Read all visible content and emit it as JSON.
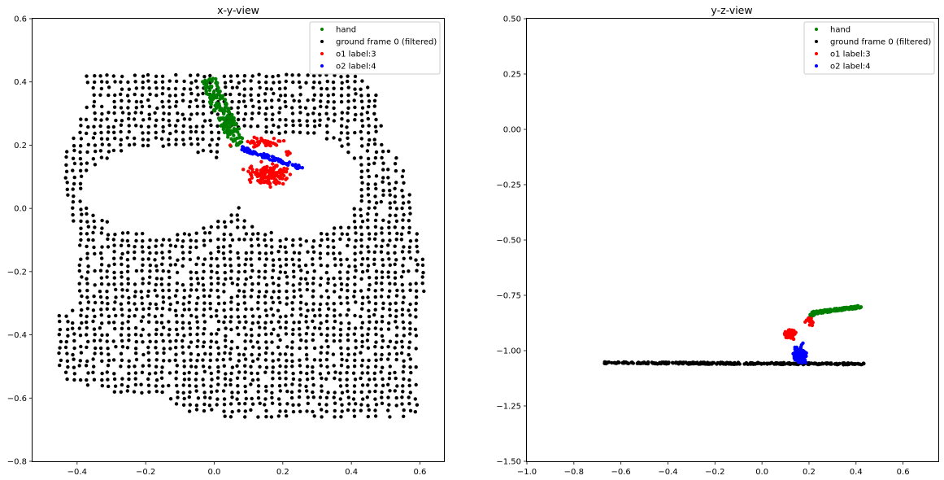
{
  "colors": {
    "hand": "#008000",
    "ground": "#000000",
    "o1": "#ff0000",
    "o2": "#0000ff",
    "background": "#ffffff"
  },
  "legend_labels": {
    "hand": "hand",
    "ground": "ground frame 0 (filtered)",
    "o1": "o1 label:3",
    "o2": "o2 label:4"
  },
  "chart_data": [
    {
      "type": "scatter",
      "title": "x-y-view",
      "xlabel": "",
      "ylabel": "",
      "xlim": [
        -0.53,
        0.67
      ],
      "ylim": [
        -0.8,
        0.6
      ],
      "xticks": [
        -0.4,
        -0.2,
        0.0,
        0.2,
        0.4,
        0.6
      ],
      "xtick_labels": [
        "−0.4",
        "−0.2",
        "0.0",
        "0.2",
        "0.4",
        "0.6"
      ],
      "yticks": [
        -0.8,
        -0.6,
        -0.4,
        -0.2,
        0.0,
        0.2,
        0.4,
        0.6
      ],
      "ytick_labels": [
        "−0.8",
        "−0.6",
        "−0.4",
        "−0.2",
        "0.0",
        "0.2",
        "0.4",
        "0.6"
      ],
      "grid": false,
      "legend_position": "top-right",
      "series": [
        {
          "name": "hand",
          "color_key": "hand",
          "description": "narrow diagonal band of points from (-0.02, 0.41) to (0.07, 0.20)",
          "segment": {
            "from": [
              -0.02,
              0.41
            ],
            "to": [
              0.07,
              0.2
            ],
            "width": 0.045,
            "count": 190
          }
        },
        {
          "name": "ground frame 0 (filtered)",
          "color_key": "ground",
          "grid_spacing": 0.02,
          "outline": [
            [
              -0.38,
              0.43
            ],
            [
              0.42,
              0.43
            ],
            [
              0.48,
              0.36
            ],
            [
              0.49,
              0.22
            ],
            [
              0.55,
              0.14
            ],
            [
              0.58,
              0.0
            ],
            [
              0.6,
              -0.1
            ],
            [
              0.62,
              -0.25
            ],
            [
              0.59,
              -0.3
            ],
            [
              0.59,
              -0.55
            ],
            [
              0.6,
              -0.65
            ],
            [
              0.55,
              -0.66
            ],
            [
              0.45,
              -0.66
            ],
            [
              0.3,
              -0.66
            ],
            [
              0.1,
              -0.66
            ],
            [
              -0.05,
              -0.66
            ],
            [
              -0.15,
              -0.6
            ],
            [
              -0.3,
              -0.58
            ],
            [
              -0.45,
              -0.55
            ],
            [
              -0.47,
              -0.35
            ],
            [
              -0.4,
              -0.3
            ],
            [
              -0.4,
              -0.1
            ],
            [
              -0.42,
              0.0
            ],
            [
              -0.44,
              0.1
            ],
            [
              -0.45,
              0.18
            ],
            [
              -0.41,
              0.24
            ],
            [
              -0.36,
              0.35
            ]
          ],
          "holes": [
            {
              "center": [
                -0.15,
                0.055
              ],
              "radii": [
                0.23,
                0.135
              ]
            },
            {
              "center": [
                0.24,
                0.075
              ],
              "radii": [
                0.185,
                0.165
              ]
            },
            {
              "center": [
                0.1,
                0.18
              ],
              "radii": [
                0.09,
                0.07
              ]
            }
          ]
        },
        {
          "name": "o1 label:3",
          "color_key": "o1",
          "clusters": [
            {
              "center": [
                0.16,
                0.11
              ],
              "spread": [
                0.06,
                0.03
              ],
              "count": 140
            },
            {
              "center": [
                0.14,
                0.21
              ],
              "spread": [
                0.055,
                0.012
              ],
              "count": 45
            },
            {
              "center": [
                0.215,
                0.175
              ],
              "spread": [
                0.008,
                0.01
              ],
              "count": 6
            }
          ]
        },
        {
          "name": "o2 label:4",
          "color_key": "o2",
          "segment": {
            "from": [
              0.08,
              0.19
            ],
            "to": [
              0.26,
              0.125
            ],
            "width": 0.012,
            "count": 90
          }
        }
      ]
    },
    {
      "type": "scatter",
      "title": "y-z-view",
      "xlabel": "",
      "ylabel": "",
      "xlim": [
        -1.0,
        0.75
      ],
      "ylim": [
        -1.5,
        0.5
      ],
      "xticks": [
        -1.0,
        -0.8,
        -0.6,
        -0.4,
        -0.2,
        0.0,
        0.2,
        0.4,
        0.6
      ],
      "xtick_labels": [
        "−1.0",
        "−0.8",
        "−0.6",
        "−0.4",
        "−0.2",
        "0.0",
        "0.2",
        "0.4",
        "0.6"
      ],
      "yticks": [
        -1.5,
        -1.25,
        -1.0,
        -0.75,
        -0.5,
        -0.25,
        0.0,
        0.25,
        0.5
      ],
      "ytick_labels": [
        "−1.50",
        "−1.25",
        "−1.00",
        "−0.75",
        "−0.50",
        "−0.25",
        "0.00",
        "0.25",
        "0.50"
      ],
      "grid": false,
      "legend_position": "top-right",
      "series": [
        {
          "name": "hand",
          "color_key": "hand",
          "segment": {
            "from": [
              0.21,
              -0.83
            ],
            "to": [
              0.43,
              -0.8
            ],
            "width": 0.012,
            "count": 120
          },
          "tail": {
            "from": [
              0.2,
              -0.845
            ],
            "to": [
              0.26,
              -0.82
            ],
            "width": 0.01,
            "count": 25
          }
        },
        {
          "name": "ground frame 0 (filtered)",
          "color_key": "ground",
          "segment": {
            "from": [
              -0.67,
              -1.055
            ],
            "to": [
              0.44,
              -1.06
            ],
            "width": 0.008,
            "count": 320
          }
        },
        {
          "name": "o1 label:3",
          "color_key": "o1",
          "clusters": [
            {
              "center": [
                0.12,
                -0.925
              ],
              "spread": [
                0.02,
                0.02
              ],
              "count": 80
            },
            {
              "center": [
                0.2,
                -0.87
              ],
              "spread": [
                0.02,
                0.025
              ],
              "count": 12
            }
          ]
        },
        {
          "name": "o2 label:4",
          "color_key": "o2",
          "clusters": [
            {
              "center": [
                0.16,
                -1.015
              ],
              "spread": [
                0.025,
                0.035
              ],
              "count": 110
            }
          ]
        }
      ]
    }
  ]
}
